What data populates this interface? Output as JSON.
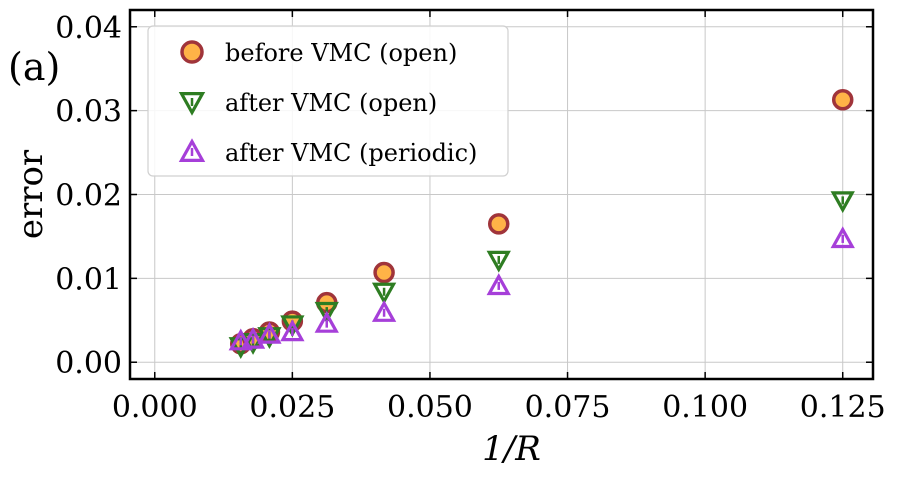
{
  "panel_label": "(a)",
  "chart_data": {
    "type": "scatter",
    "title": "",
    "xlabel": "1/R",
    "ylabel": "error",
    "xlim": [
      -0.0045,
      0.1305
    ],
    "ylim": [
      -0.002,
      0.042
    ],
    "grid": true,
    "legend_position": "top-left",
    "xticks": [
      0.0,
      0.025,
      0.05,
      0.075,
      0.1,
      0.125
    ],
    "xtick_labels": [
      "0.000",
      "0.025",
      "0.050",
      "0.075",
      "0.100",
      "0.125"
    ],
    "yticks": [
      0.0,
      0.01,
      0.02,
      0.03,
      0.04
    ],
    "ytick_labels": [
      "0.00",
      "0.01",
      "0.02",
      "0.03",
      "0.04"
    ],
    "series": [
      {
        "name": "before VMC (open)",
        "marker": "circle",
        "fill": "#ffb347",
        "stroke": "#a0343a",
        "x": [
          0.015625,
          0.017857,
          0.020833,
          0.025,
          0.03125,
          0.041667,
          0.0625,
          0.125
        ],
        "y": [
          0.0022,
          0.0028,
          0.0036,
          0.0049,
          0.0071,
          0.0107,
          0.0165,
          0.0313
        ]
      },
      {
        "name": "after VMC (open)",
        "marker": "triangle-down",
        "fill": "none",
        "stroke": "#2e7d22",
        "x": [
          0.015625,
          0.017857,
          0.020833,
          0.025,
          0.03125,
          0.041667,
          0.0625,
          0.125
        ],
        "y": [
          0.0019,
          0.0024,
          0.0031,
          0.0045,
          0.0061,
          0.0084,
          0.0122,
          0.0193
        ]
      },
      {
        "name": "after VMC (periodic)",
        "marker": "triangle-up",
        "fill": "none",
        "stroke": "#a63fd9",
        "x": [
          0.015625,
          0.017857,
          0.020833,
          0.025,
          0.03125,
          0.041667,
          0.0625,
          0.125
        ],
        "y": [
          0.0025,
          0.0027,
          0.0033,
          0.0036,
          0.0046,
          0.0059,
          0.0091,
          0.0147
        ]
      }
    ]
  }
}
